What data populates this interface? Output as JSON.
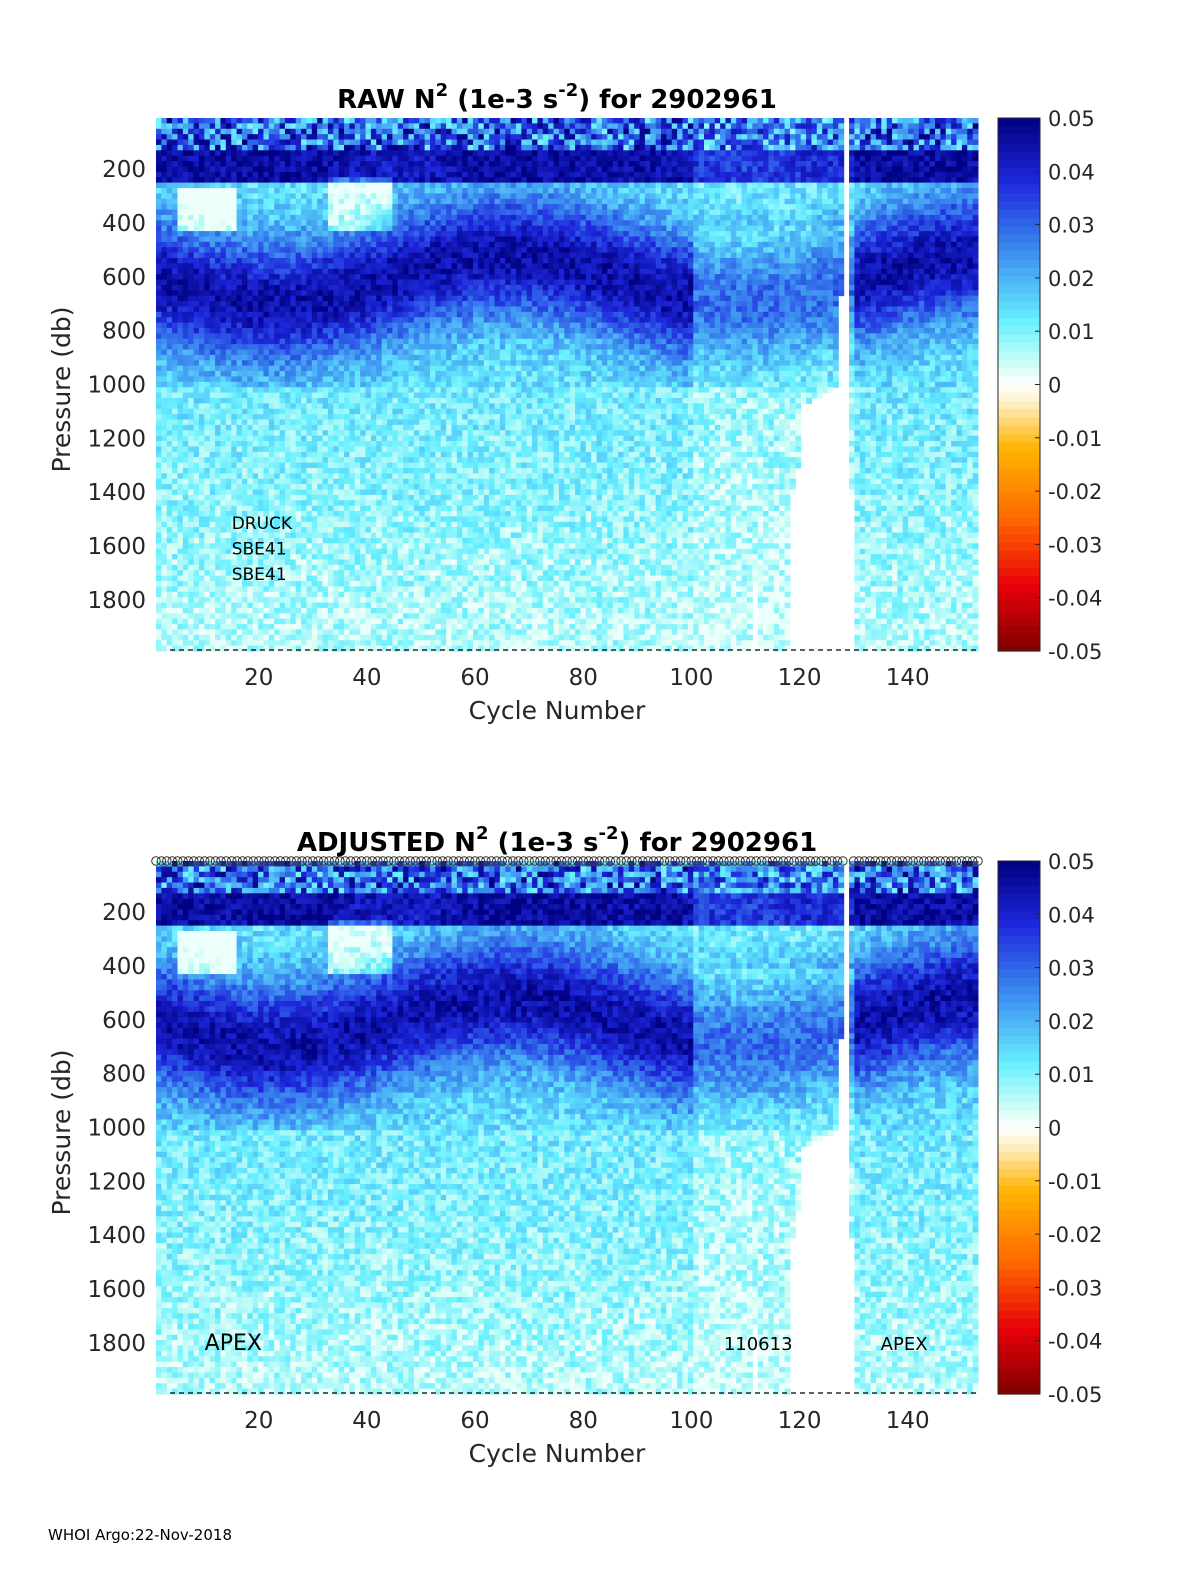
{
  "footer": "WHOI Argo:22-Nov-2018",
  "colormap": {
    "stops": [
      [
        0.0,
        "#7f0000"
      ],
      [
        0.12,
        "#e8000a"
      ],
      [
        0.25,
        "#ff6a00"
      ],
      [
        0.38,
        "#ffb400"
      ],
      [
        0.47,
        "#fff2d0"
      ],
      [
        0.5,
        "#ffffff"
      ],
      [
        0.53,
        "#d8fff6"
      ],
      [
        0.62,
        "#66efff"
      ],
      [
        0.75,
        "#3c8cf0"
      ],
      [
        0.88,
        "#1e28dc"
      ],
      [
        1.0,
        "#000080"
      ]
    ]
  },
  "chart_data": [
    {
      "type": "heatmap",
      "title_parts": [
        "RAW N",
        "2",
        " (1e-3 s",
        "-2",
        ") for 2902961"
      ],
      "xlabel": "Cycle Number",
      "ylabel": "Pressure (db)",
      "xlim": [
        1,
        153
      ],
      "ylim": [
        1990,
        10
      ],
      "xticks": [
        20,
        40,
        60,
        80,
        100,
        120,
        140
      ],
      "yticks": [
        200,
        400,
        600,
        800,
        1000,
        1200,
        1400,
        1600,
        1800
      ],
      "clim": [
        -0.05,
        0.05
      ],
      "colorbar_ticks": [
        "0.05",
        "0.04",
        "0.03",
        "0.02",
        "0.01",
        "0",
        "-0.01",
        "-0.02",
        "-0.03",
        "-0.04",
        "-0.05"
      ],
      "show_markers": false,
      "annotations": [
        {
          "text": "DRUCK",
          "x": 15,
          "y": 1510,
          "size": 17
        },
        {
          "text": "SBE41",
          "x": 15,
          "y": 1605,
          "size": 17
        },
        {
          "text": "SBE41",
          "x": 15,
          "y": 1700,
          "size": 17
        }
      ]
    },
    {
      "type": "heatmap",
      "title_parts": [
        "ADJUSTED N",
        "2",
        " (1e-3 s",
        "-2",
        ") for 2902961"
      ],
      "xlabel": "Cycle Number",
      "ylabel": "Pressure (db)",
      "xlim": [
        1,
        153
      ],
      "ylim": [
        1990,
        10
      ],
      "xticks": [
        20,
        40,
        60,
        80,
        100,
        120,
        140
      ],
      "yticks": [
        200,
        400,
        600,
        800,
        1000,
        1200,
        1400,
        1600,
        1800
      ],
      "clim": [
        -0.05,
        0.05
      ],
      "colorbar_ticks": [
        "0.05",
        "0.04",
        "0.03",
        "0.02",
        "0.01",
        "0",
        "-0.01",
        "-0.02",
        "-0.03",
        "-0.04",
        "-0.05"
      ],
      "show_markers": true,
      "annotations": [
        {
          "text": "APEX",
          "x": 10,
          "y": 1800,
          "size": 22
        },
        {
          "text": "110613",
          "x": 106,
          "y": 1800,
          "size": 18
        },
        {
          "text": "APEX",
          "x": 135,
          "y": 1800,
          "size": 18
        }
      ]
    }
  ]
}
